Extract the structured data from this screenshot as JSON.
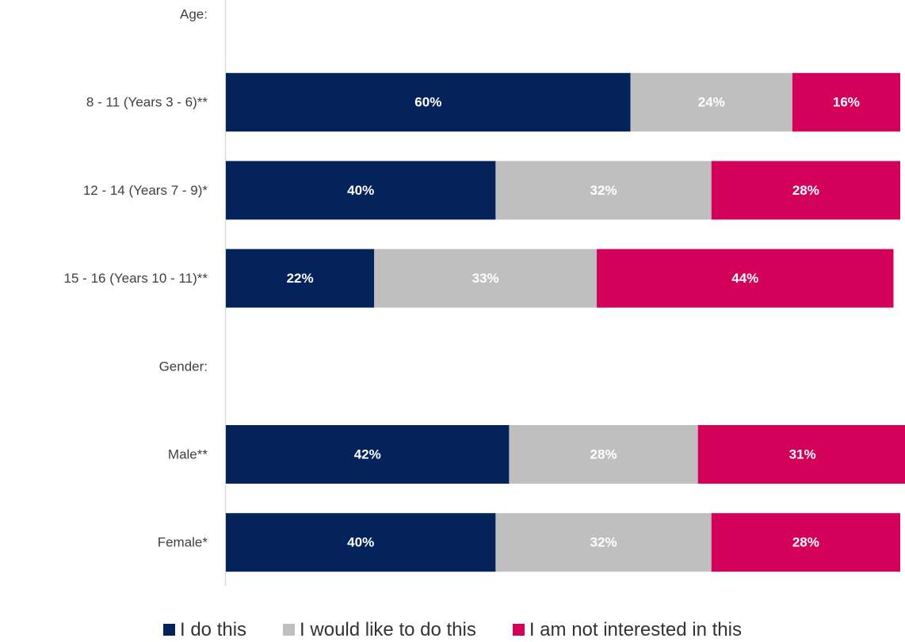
{
  "chart_data": {
    "type": "bar",
    "orientation": "horizontal",
    "stacked": true,
    "categories": [
      "Age:",
      "8 - 11 (Years 3 - 6)**",
      "12 - 14 (Years 7 - 9)*",
      "15 - 16 (Years 10 - 11)**",
      "Gender:",
      "Male**",
      "Female*"
    ],
    "series": [
      {
        "name": "I do this",
        "color": "#03235a",
        "values": [
          null,
          60,
          40,
          22,
          null,
          42,
          40
        ]
      },
      {
        "name": "I would like to do this",
        "color": "#bfbfbf",
        "values": [
          null,
          24,
          32,
          33,
          null,
          28,
          32
        ]
      },
      {
        "name": "I am not interested in this",
        "color": "#d3015a",
        "values": [
          null,
          16,
          28,
          44,
          null,
          31,
          28
        ]
      }
    ],
    "value_labels": [
      [
        null,
        "60%",
        "40%",
        "22%",
        null,
        "42%",
        "40%"
      ],
      [
        null,
        "24%",
        "32%",
        "33%",
        null,
        "28%",
        "32%"
      ],
      [
        null,
        "16%",
        "28%",
        "44%",
        null,
        "31%",
        "28%"
      ]
    ],
    "xlim": [
      0,
      100
    ],
    "grid": false,
    "legend": "bottom",
    "title": "",
    "xlabel": "",
    "ylabel": ""
  }
}
